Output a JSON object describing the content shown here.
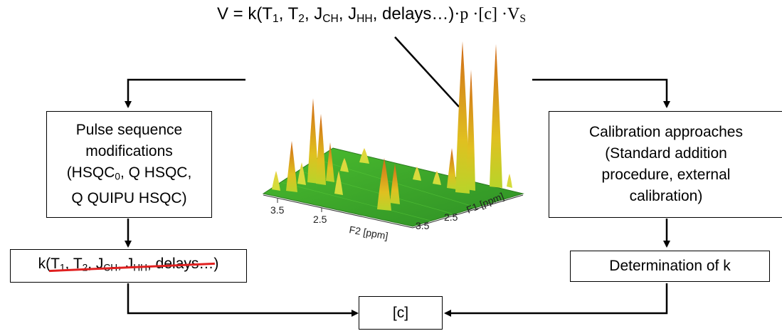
{
  "equation": {
    "lhs": "V = k(T",
    "t1_sub": "1",
    "t2_pre": ", T",
    "t2_sub": "2",
    "jch_pre": ", J",
    "jch_sub": "CH",
    "jhh_pre": ", J",
    "jhh_sub": "HH",
    "tail": ", delays…)",
    "factors": "·p ·[c] ·V",
    "vs_sub": "S"
  },
  "left_box": {
    "line1": "Pulse sequence",
    "line2": "modifications",
    "line3_pre": "(HSQC",
    "line3_sub": "0",
    "line3_post": ", Q HSQC,",
    "line4": "Q QUIPU HSQC)"
  },
  "k_box": {
    "prefix": "k(",
    "t1": "T",
    "t1_sub": "1",
    "t2": ", T",
    "t2_sub": "2",
    "jch": ", J",
    "jch_sub": "CH",
    "jhh": ", J",
    "jhh_sub": "HH",
    "delays": ", delays…",
    "suffix": ")"
  },
  "right_box": {
    "line1": "Calibration approaches",
    "line2": "(Standard addition",
    "line3": "procedure, external",
    "line4": "calibration)"
  },
  "determination_box": {
    "label": "Determination of k"
  },
  "result_box": {
    "label": "[c]"
  },
  "spectrum": {
    "f2_ticks": [
      "3.5",
      "2.5"
    ],
    "f2_label": "F2 [ppm]",
    "f1_ticks": [
      "3.5",
      "2.5"
    ],
    "f1_label": "F1 [ppm]",
    "colors": {
      "plane": "#3aa52a",
      "peak_base": "#c8d82a",
      "peak_top": "#d4781a",
      "strike": "#e02020"
    }
  }
}
